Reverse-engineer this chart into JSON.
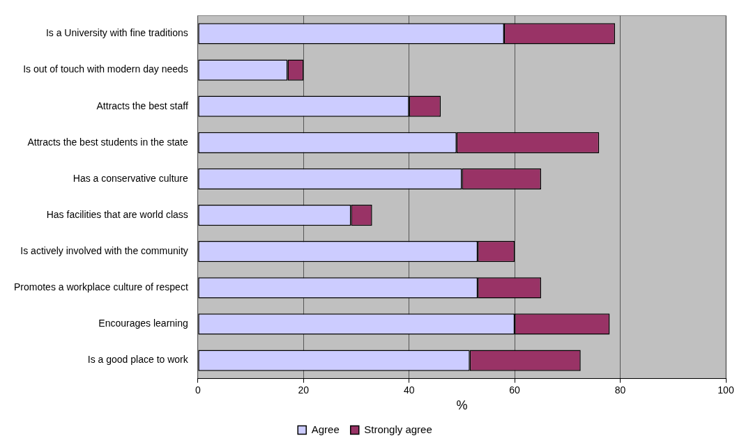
{
  "chart_data": {
    "type": "bar",
    "orientation": "horizontal",
    "stacked": true,
    "xlabel": "%",
    "categories": [
      "Is a University with fine traditions",
      "Is out of touch with modern day needs",
      "Attracts the best staff",
      "Attracts the best students in the state",
      "Has a conservative culture",
      "Has facilities that are world class",
      "Is actively involved with the community",
      "Promotes a workplace culture of respect",
      "Encourages learning",
      "Is a good place to work"
    ],
    "series": [
      {
        "name": "Agree",
        "color": "#ccccff",
        "values": [
          58,
          17,
          40,
          49,
          50,
          29,
          53,
          53,
          60,
          51.5
        ]
      },
      {
        "name": "Strongly agree",
        "color": "#993366",
        "values": [
          21,
          3,
          6,
          27,
          15,
          4,
          7,
          12,
          18,
          21
        ]
      }
    ],
    "xlim": [
      0,
      100
    ],
    "xticks": [
      0,
      20,
      40,
      60,
      80,
      100
    ],
    "grid": "x",
    "legend": "bottom"
  }
}
